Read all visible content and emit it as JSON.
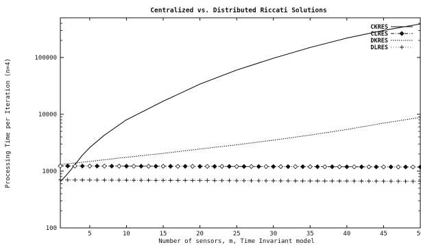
{
  "chart_data": {
    "type": "line",
    "title": "Centralized vs. Distributed Riccati Solutions",
    "xlabel": "Number of sensors, m, Time Invariant model",
    "ylabel": "Processing Time per Iteration (n=4)",
    "xlim": [
      1,
      50
    ],
    "ylim": [
      100,
      500000
    ],
    "yscale": "log",
    "x_ticks": [
      5,
      10,
      15,
      20,
      25,
      30,
      35,
      40,
      45,
      50
    ],
    "x_tick_labels": [
      "5",
      "10",
      "15",
      "20",
      "25",
      "30",
      "35",
      "40",
      "45",
      "50"
    ],
    "y_ticks": [
      100,
      1000,
      10000,
      100000
    ],
    "y_tick_labels": [
      "100",
      "1000",
      "10000",
      "100000"
    ],
    "grid": false,
    "legend_position": "top-right",
    "series": [
      {
        "name": "CKRES",
        "style": "solid",
        "x": [
          1,
          2,
          3,
          4,
          5,
          7,
          10,
          15,
          20,
          25,
          30,
          35,
          40,
          45,
          50
        ],
        "y": [
          650,
          900,
          1300,
          1900,
          2600,
          4300,
          8000,
          17000,
          34000,
          60000,
          97000,
          150000,
          220000,
          300000,
          390000
        ]
      },
      {
        "name": "CLRES",
        "style": "dash-dot with diamond markers",
        "x": [
          1,
          50
        ],
        "y": [
          1230,
          1180
        ]
      },
      {
        "name": "DKRES",
        "style": "dotted",
        "x": [
          1,
          5,
          10,
          15,
          20,
          25,
          30,
          35,
          40,
          45,
          50
        ],
        "y": [
          1300,
          1480,
          1750,
          2050,
          2450,
          2900,
          3500,
          4300,
          5400,
          7000,
          8800
        ]
      },
      {
        "name": "DLRES",
        "style": "dotted with plus markers",
        "x": [
          1,
          50
        ],
        "y": [
          700,
          660
        ]
      }
    ]
  }
}
